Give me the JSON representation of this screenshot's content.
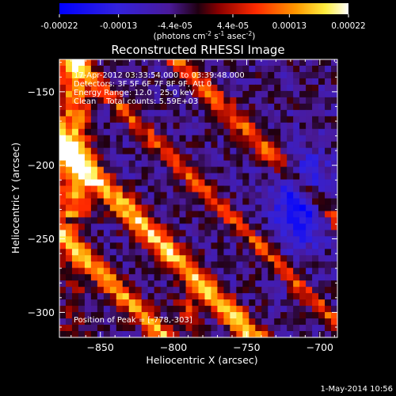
{
  "colorbar": {
    "ticks": [
      "-0.00022",
      "-0.00013",
      "-4.4e-05",
      "4.4e-05",
      "0.00013",
      "0.00022"
    ],
    "tick_values": [
      -0.00022,
      -0.00013,
      -4.4e-05,
      4.4e-05,
      0.00013,
      0.00022
    ],
    "range": [
      -0.00022,
      0.00022
    ],
    "unit_main": "(photons cm",
    "unit_exp1": "-2",
    "unit_mid": " s",
    "unit_exp2": "-1",
    "unit_tail": " asec",
    "unit_exp3": "-2",
    "unit_close": ")"
  },
  "chart_data": {
    "type": "heatmap",
    "title": "Reconstructed RHESSI Image",
    "xlabel": "Heliocentric X (arcsec)",
    "ylabel": "Heliocentric Y (arcsec)",
    "xlim": [
      -878,
      -688
    ],
    "ylim": [
      -317,
      -128
    ],
    "xticks": [
      -850,
      -800,
      -750,
      -700
    ],
    "yticks": [
      -150,
      -200,
      -250,
      -300
    ],
    "xtick_labels": [
      "−850",
      "−800",
      "−750",
      "−700"
    ],
    "ytick_labels": [
      "−150",
      "−200",
      "−250",
      "−300"
    ],
    "colormap": "blue-purple-red-yellow-white",
    "peak_position": [
      -778,
      -303
    ]
  },
  "annotations": {
    "line1": "17-Apr-2012 03:33:54.000 to 03:39:48.000",
    "line2": "Detectors: 3F 5F 6F 7F 8F 9F, Att 0",
    "line3": "Energy Range: 12.0 - 25.0 keV",
    "line4": "Clean    Total counts: 5.59E+03",
    "peak": "Position of Peak = [-778,-303]"
  },
  "footer": {
    "date": "1-May-2014 10:56"
  }
}
